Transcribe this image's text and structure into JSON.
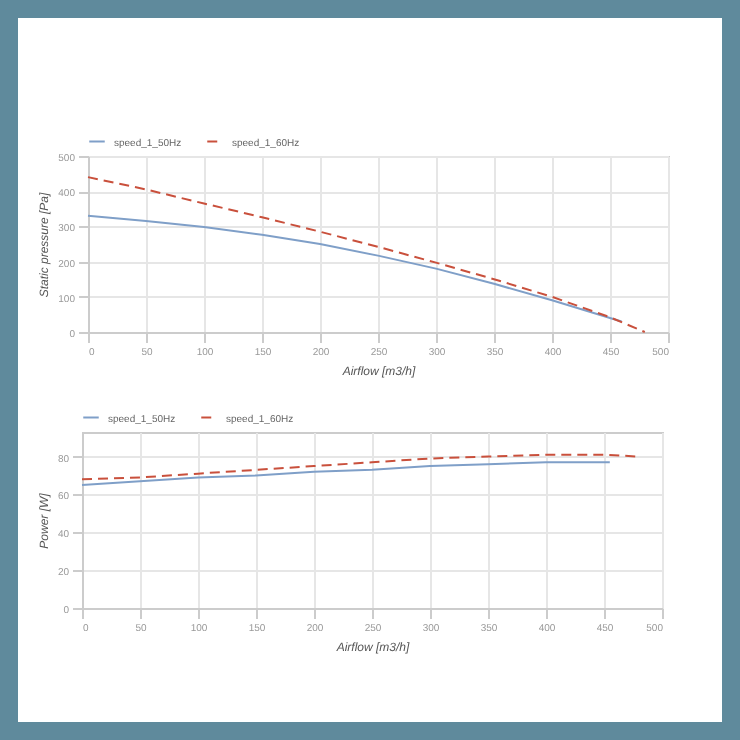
{
  "chart_data": [
    {
      "type": "line",
      "xlabel": "Airflow [m3/h]",
      "ylabel": "Static pressure [Pa]",
      "xlim": [
        0,
        500
      ],
      "xticks": [
        0,
        50,
        100,
        150,
        200,
        250,
        300,
        350,
        400,
        450,
        500
      ],
      "ylim": [
        0,
        500
      ],
      "yticks": [
        0,
        100,
        200,
        300,
        400,
        500
      ],
      "grid": true,
      "legend": "top left",
      "series": [
        {
          "name": "speed_1_50Hz",
          "color": "#7f9fc8",
          "line_style": "solid",
          "x": [
            0,
            50,
            100,
            150,
            200,
            250,
            300,
            350,
            400,
            450,
            460
          ],
          "values": [
            330,
            315,
            298,
            276,
            250,
            217,
            180,
            137,
            90,
            40,
            30
          ]
        },
        {
          "name": "speed_1_60Hz",
          "color": "#c9503c",
          "line_style": "dashed",
          "x": [
            0,
            50,
            100,
            150,
            200,
            250,
            300,
            350,
            400,
            450,
            480
          ],
          "values": [
            440,
            405,
            365,
            326,
            285,
            242,
            197,
            150,
            100,
            42,
            0
          ]
        }
      ]
    },
    {
      "type": "line",
      "xlabel": "Airflow [m3/h]",
      "ylabel": "Power [W]",
      "xlim": [
        0,
        500
      ],
      "xticks": [
        0,
        50,
        100,
        150,
        200,
        250,
        300,
        350,
        400,
        450,
        500
      ],
      "ylim": [
        0,
        93
      ],
      "yticks": [
        0,
        20,
        40,
        60,
        80
      ],
      "grid": true,
      "legend": "top left",
      "series": [
        {
          "name": "speed_1_50Hz",
          "color": "#7f9fc8",
          "line_style": "solid",
          "x": [
            0,
            50,
            100,
            150,
            200,
            250,
            300,
            350,
            400,
            455
          ],
          "values": [
            65,
            67,
            69,
            70,
            72,
            73,
            75,
            76,
            77,
            77
          ]
        },
        {
          "name": "speed_1_60Hz",
          "color": "#c9503c",
          "line_style": "dashed",
          "x": [
            0,
            50,
            100,
            150,
            200,
            250,
            300,
            350,
            400,
            450,
            480
          ],
          "values": [
            68,
            69,
            71,
            73,
            75,
            77,
            79,
            80,
            81,
            81,
            80
          ]
        }
      ]
    }
  ]
}
